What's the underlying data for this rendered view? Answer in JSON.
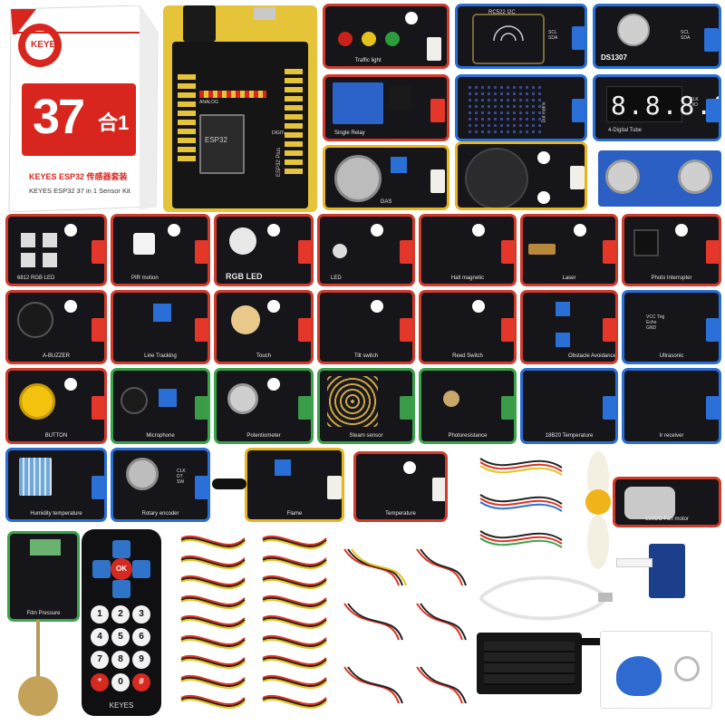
{
  "box": {
    "brand": "KEYES",
    "number": "37",
    "suffix": "合1",
    "title_cn": "KEYES ESP32 传感器套装",
    "title_en": "KEYES ESP32 37 in 1 Sensor Kit"
  },
  "board": {
    "chip": "ESP32",
    "label": "ESP32 Plus",
    "analog": "ANALOG",
    "digital": "DIGITAL"
  },
  "modules": {
    "traffic_light": "Traffic light",
    "rfid": "RC522 I2C",
    "rtc": "DS1307",
    "relay": "Single Relay",
    "dot_matrix": "Dot matrix",
    "tube": "4-Digital Tube",
    "gas": "GAS",
    "rgb6812": "6812 RGB LED",
    "pir": "PIR motion",
    "rgbled": "RGB LED",
    "led": "LED",
    "hall": "Hall magnetic",
    "laser": "Laser",
    "photo_int": "Photo Interrupter",
    "buzzer": "A-BUZZER",
    "line": "Line Tracking",
    "touch": "Touch",
    "tilt": "Tilt switch",
    "reed": "Reed Switch",
    "obstacle": "Obstacle Avoidance",
    "ultrasonic": "Ultrasonic",
    "button": "BUTTON",
    "mic": "Microphone",
    "pot": "Potentiometer",
    "steam": "Steam sensor",
    "photores": "Photoresistance",
    "ds18b20": "18B20 Temperature",
    "ir": "Ir receiver",
    "humid": "Humidity temperature",
    "rotary": "Rotary encoder",
    "flame": "Flame",
    "temp": "Temperature",
    "film": "Film Pressure",
    "fan": "130DC Fan motor"
  },
  "pins": {
    "sig": "S",
    "vcc": "V",
    "gnd": "G",
    "i2c": "SCL SDA",
    "tube": "CLK DIO",
    "ultra": "VCC Trig Echo GND",
    "rotary": "CLK DT SW"
  },
  "remote": {
    "brand": "KEYES",
    "ok": "OK",
    "keys": [
      "1",
      "2",
      "3",
      "4",
      "5",
      "6",
      "7",
      "8",
      "9",
      "*",
      "0",
      "#"
    ]
  },
  "colors": {
    "pcb": "#15151a",
    "red": "#d23b2c",
    "blue": "#2a6fd6",
    "green": "#3aa44a",
    "yellow": "#e8b51e"
  }
}
